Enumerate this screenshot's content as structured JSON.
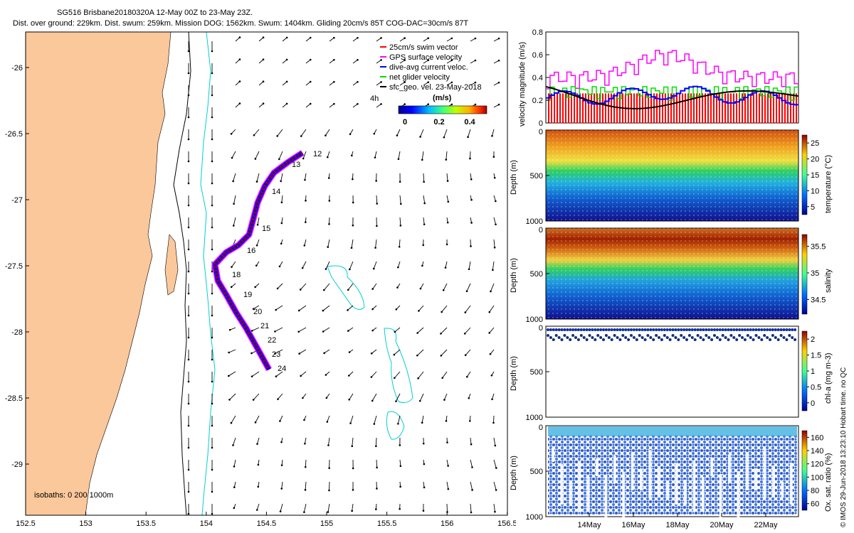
{
  "header": {
    "title": "SG516 Brisbane20180320A 12-May 00Z to 23-May 23Z.",
    "subtitle": "Dist. over ground: 229km. Dist. swum: 259km. Mission DOG: 1562km. Swum: 1404km. Gliding 20cm/s 85T COG-DAC=30cm/s 87T"
  },
  "map": {
    "x_ticks": [
      "152.5",
      "153",
      "153.5",
      "154",
      "154.5",
      "155",
      "155.5",
      "156",
      "156.5"
    ],
    "y_ticks": [
      "-26",
      "-26.5",
      "-27",
      "-27.5",
      "-28",
      "-28.5",
      "-29"
    ],
    "legend": [
      {
        "label": "25cm/s swim vector",
        "color": "#ff0000"
      },
      {
        "label": "GPS surface velocity",
        "color": "#ff00ff"
      },
      {
        "label": "dive-avg current veloc.",
        "color": "#0000ff"
      },
      {
        "label": "net glider velocity",
        "color": "#00dd00"
      },
      {
        "label": "sfc_geo. vel. 23-May-2018",
        "color": "#000000"
      }
    ],
    "legend_extra": "4h",
    "colorbar_title": "(m/s)",
    "colorbar_ticks": [
      "0",
      "0.2",
      "0.4"
    ],
    "isobaths_label": "isobaths: 0   200  1000m",
    "day_labels": [
      "12",
      "13",
      "14",
      "15",
      "16",
      "18",
      "19",
      "20",
      "21",
      "22",
      "23",
      "24"
    ],
    "colors": {
      "land": "#fbc89b",
      "isobath_200": "#00d0d0",
      "coast": "#000000"
    }
  },
  "chart_data": [
    {
      "type": "line",
      "title": "",
      "ylabel": "velocity magnitude (m/s)",
      "ylim": [
        0,
        0.8
      ],
      "y_ticks": [
        "0",
        "0.2",
        "0.4",
        "0.6",
        "0.8"
      ],
      "note": "series: magenta GPS surface velocity, green net glider velocity, blue dive-avg current, black sfc geo velocity, red swim"
    },
    {
      "type": "heatmap",
      "ylabel": "Depth (m)",
      "colorbar_label": "temperature (°C)",
      "y_ticks": [
        "0",
        "500",
        "1000"
      ],
      "colorbar_ticks": [
        "5",
        "10",
        "15",
        "20",
        "25"
      ]
    },
    {
      "type": "heatmap",
      "ylabel": "Depth (m)",
      "colorbar_label": "salinity",
      "y_ticks": [
        "0",
        "500",
        "1000"
      ],
      "colorbar_ticks": [
        "34.5",
        "35",
        "35.5"
      ]
    },
    {
      "type": "scatter",
      "ylabel": "Depth (m)",
      "colorbar_label": "chl-a (mg m-3)",
      "y_ticks": [
        "0",
        "500",
        "1000"
      ],
      "colorbar_ticks": [
        "0",
        "0.5",
        "1",
        "1.5",
        "2"
      ]
    },
    {
      "type": "scatter",
      "ylabel": "Depth (m)",
      "colorbar_label": "Ox. sat. ratio (%)",
      "y_ticks": [
        "0",
        "500",
        "1000"
      ],
      "colorbar_ticks": [
        "60",
        "80",
        "100",
        "120",
        "140",
        "160"
      ],
      "x_ticks": [
        "14May",
        "16May",
        "18May",
        "20May",
        "22May"
      ]
    }
  ],
  "footer": {
    "credit": "© IMOS 29-Jun-2018 13:23:10 Hobart time. no QC"
  }
}
